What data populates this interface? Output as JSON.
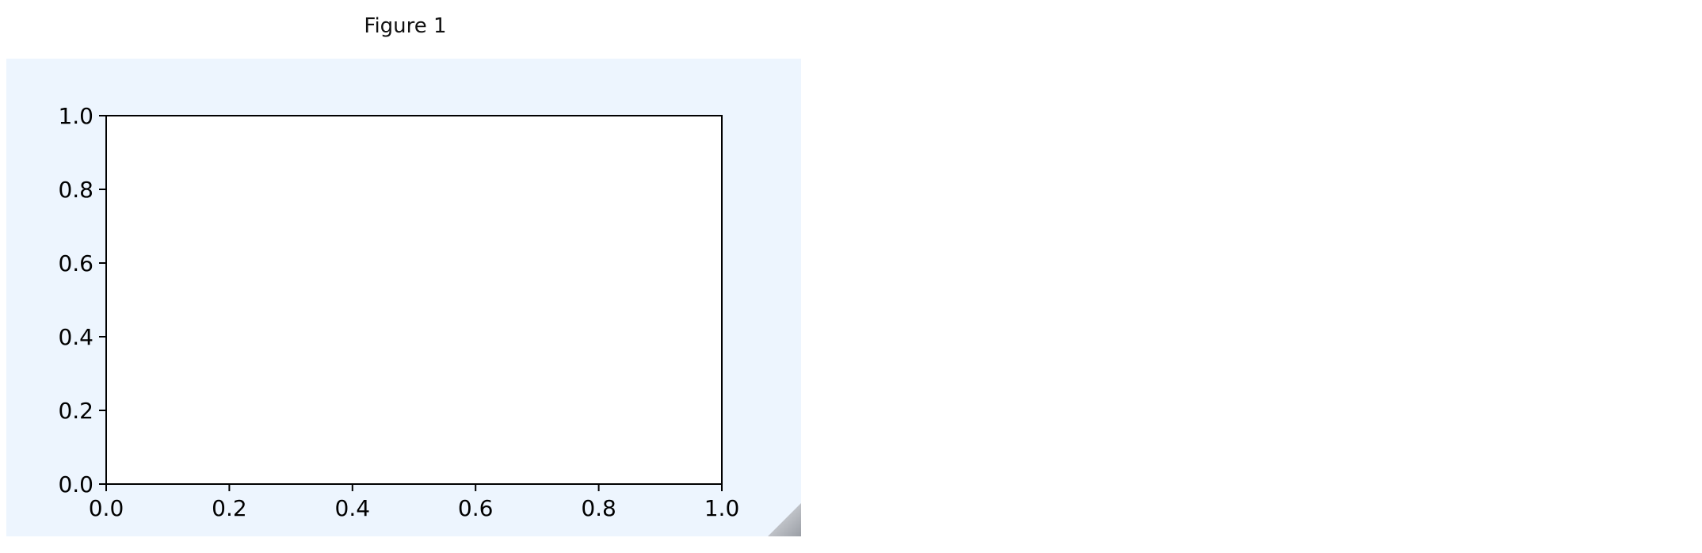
{
  "window": {
    "title": "Figure 1"
  },
  "colors": {
    "figure_background": "#edf5fe",
    "axes_background": "#ffffff",
    "axis_line": "#000000"
  },
  "chart_data": {
    "type": "line",
    "series": [],
    "title": "",
    "xlabel": "",
    "ylabel": "",
    "xlim": [
      0.0,
      1.0
    ],
    "ylim": [
      0.0,
      1.0
    ],
    "x_tick_labels": [
      "0.0",
      "0.2",
      "0.4",
      "0.6",
      "0.8",
      "1.0"
    ],
    "y_tick_labels": [
      "0.0",
      "0.2",
      "0.4",
      "0.6",
      "0.8",
      "1.0"
    ],
    "grid": false
  }
}
